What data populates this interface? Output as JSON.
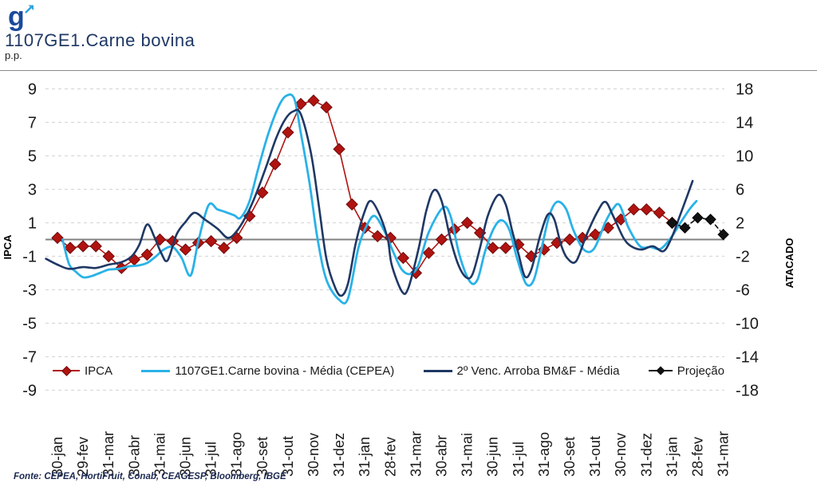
{
  "header": {
    "logo_text": "g",
    "title": "1107GE1.Carne bovina",
    "unit_label": "p.p."
  },
  "axes": {
    "left": {
      "title": "IPCA",
      "ticks": [
        9,
        7,
        5,
        3,
        1,
        -1,
        -3,
        -5,
        -7,
        -9
      ]
    },
    "right": {
      "title": "ATACADO",
      "ticks": [
        18,
        14,
        10,
        6,
        2,
        -2,
        -6,
        -10,
        -14,
        -18
      ]
    }
  },
  "legend": [
    {
      "label": "IPCA"
    },
    {
      "label": "1107GE1.Carne bovina - Média (CEPEA)"
    },
    {
      "label": "2º Venc. Arroba BM&F - Média"
    },
    {
      "label": "Projeção"
    }
  ],
  "footer": {
    "source": "Fonte: CEPEA, HortiFruit, Conab, CEAGESP, Bloomberg, IBGE"
  },
  "colors": {
    "title": "#1f3864",
    "ipca": "#b01310",
    "ipca_edge": "#6e0b0b",
    "cepea": "#29b2e8",
    "bmf": "#1f3864",
    "projecao": "#111111",
    "grid": "#d9d9d9",
    "zero_line": "#808080",
    "tick_text": "#1a1a1a"
  },
  "chart_data": {
    "type": "line",
    "title": "1107GE1.Carne bovina",
    "xlabel": "",
    "ylabel_left": "IPCA (p.p.)",
    "ylabel_right": "ATACADO (p.p.)",
    "ylim_left": [
      -9,
      9
    ],
    "ylim_right": [
      -18,
      18
    ],
    "grid": "dashed horizontal at every labeled tick, solid line at zero",
    "legend_position": "bottom inside plot",
    "x_note": "x = half-month index 0..52; even indices fall on the month-end category labels below (jan-2020 .. mar-2022)",
    "categories": [
      "30-jan",
      "29-fev",
      "31-mar",
      "30-abr",
      "31-mai",
      "30-jun",
      "31-jul",
      "31-ago",
      "30-set",
      "31-out",
      "30-nov",
      "31-dez",
      "31-jan",
      "28-fev",
      "31-mar",
      "30-abr",
      "31-mai",
      "30-jun",
      "31-jul",
      "31-ago",
      "30-set",
      "31-out",
      "30-nov",
      "31-dez",
      "31-jan",
      "28-fev",
      "31-mar"
    ],
    "series": [
      {
        "name": "IPCA",
        "axis": "left",
        "color": "#b01310",
        "edge": "#6e0b0b",
        "marker": "diamond",
        "marker_size": 7,
        "line_width": 1.6,
        "dash": "solid",
        "smooth": false,
        "points": [
          [
            0,
            0.1
          ],
          [
            1,
            -0.5
          ],
          [
            2,
            -0.4
          ],
          [
            3,
            -0.4
          ],
          [
            4,
            -1.0
          ],
          [
            5,
            -1.7
          ],
          [
            6,
            -1.2
          ],
          [
            7,
            -0.9
          ],
          [
            8,
            0.0
          ],
          [
            9,
            -0.1
          ],
          [
            10,
            -0.6
          ],
          [
            11,
            -0.2
          ],
          [
            12,
            -0.1
          ],
          [
            13,
            -0.5
          ],
          [
            14,
            0.1
          ],
          [
            15,
            1.4
          ],
          [
            16,
            2.8
          ],
          [
            17,
            4.5
          ],
          [
            18,
            6.4
          ],
          [
            19,
            8.1
          ],
          [
            20,
            8.3
          ],
          [
            21,
            7.9
          ],
          [
            22,
            5.4
          ],
          [
            23,
            2.1
          ],
          [
            24,
            0.7
          ],
          [
            25,
            0.2
          ],
          [
            26,
            0.1
          ],
          [
            27,
            -1.1
          ],
          [
            28,
            -2.0
          ],
          [
            29,
            -0.8
          ],
          [
            30,
            0.0
          ],
          [
            31,
            0.6
          ],
          [
            32,
            1.0
          ],
          [
            33,
            0.4
          ],
          [
            34,
            -0.5
          ],
          [
            35,
            -0.5
          ],
          [
            36,
            -0.3
          ],
          [
            37,
            -1.0
          ],
          [
            38,
            -0.6
          ],
          [
            39,
            -0.2
          ],
          [
            40,
            0.0
          ],
          [
            41,
            0.1
          ],
          [
            42,
            0.3
          ],
          [
            43,
            0.7
          ],
          [
            44,
            1.2
          ],
          [
            45,
            1.8
          ],
          [
            46,
            1.8
          ],
          [
            47,
            1.6
          ],
          [
            48,
            1.0
          ]
        ]
      },
      {
        "name": "1107GE1.Carne bovina - Média (CEPEA)",
        "axis": "right",
        "color": "#29b2e8",
        "marker": "none",
        "line_width": 2.8,
        "dash": "solid",
        "smooth": true,
        "points": [
          [
            0.4,
            0.0
          ],
          [
            0.9,
            -2.9
          ],
          [
            1.4,
            -3.8
          ],
          [
            2.0,
            -4.5
          ],
          [
            2.6,
            -4.4
          ],
          [
            3.3,
            -4.0
          ],
          [
            4.0,
            -3.6
          ],
          [
            4.8,
            -3.5
          ],
          [
            5.6,
            -3.2
          ],
          [
            6.3,
            -3.1
          ],
          [
            7.0,
            -2.8
          ],
          [
            7.7,
            -2.0
          ],
          [
            8.3,
            -1.2
          ],
          [
            9.0,
            -0.9
          ],
          [
            9.7,
            -2.2
          ],
          [
            10.4,
            -4.3
          ],
          [
            11.0,
            -0.2
          ],
          [
            11.8,
            4.1
          ],
          [
            12.5,
            3.6
          ],
          [
            13.1,
            3.3
          ],
          [
            13.8,
            2.9
          ],
          [
            14.3,
            2.6
          ],
          [
            15.0,
            4.6
          ],
          [
            15.7,
            8.6
          ],
          [
            16.5,
            12.8
          ],
          [
            17.3,
            16.0
          ],
          [
            17.9,
            17.2
          ],
          [
            18.5,
            16.8
          ],
          [
            19.0,
            12.8
          ],
          [
            19.7,
            6.6
          ],
          [
            20.3,
            0.2
          ],
          [
            21.0,
            -4.8
          ],
          [
            22.0,
            -7.2
          ],
          [
            22.7,
            -7.0
          ],
          [
            23.5,
            -1.0
          ],
          [
            24.2,
            1.8
          ],
          [
            24.8,
            2.8
          ],
          [
            25.6,
            0.8
          ],
          [
            26.2,
            -1.4
          ],
          [
            26.9,
            -3.6
          ],
          [
            27.6,
            -4.1
          ],
          [
            28.2,
            -3.0
          ],
          [
            29.0,
            0.9
          ],
          [
            30.1,
            3.8
          ],
          [
            30.7,
            2.8
          ],
          [
            31.4,
            -1.9
          ],
          [
            32.2,
            -5.0
          ],
          [
            32.8,
            -4.8
          ],
          [
            33.4,
            -1.4
          ],
          [
            34.1,
            1.4
          ],
          [
            34.7,
            2.3
          ],
          [
            35.3,
            1.1
          ],
          [
            35.9,
            -2.3
          ],
          [
            36.6,
            -5.3
          ],
          [
            37.2,
            -4.8
          ],
          [
            37.8,
            -1.1
          ],
          [
            38.4,
            2.8
          ],
          [
            39.0,
            4.5
          ],
          [
            39.7,
            3.7
          ],
          [
            40.3,
            1.1
          ],
          [
            41.1,
            -1.2
          ],
          [
            41.9,
            -1.1
          ],
          [
            42.8,
            2.1
          ],
          [
            43.4,
            3.7
          ],
          [
            43.9,
            4.1
          ],
          [
            44.6,
            1.4
          ],
          [
            45.5,
            -0.8
          ],
          [
            46.3,
            -0.9
          ],
          [
            47.1,
            -1.1
          ],
          [
            47.9,
            0.2
          ],
          [
            48.7,
            2.1
          ],
          [
            49.4,
            3.7
          ],
          [
            49.9,
            4.6
          ]
        ]
      },
      {
        "name": "2º Venc. Arroba BM&F - Média",
        "axis": "right",
        "color": "#1f3864",
        "marker": "none",
        "line_width": 2.6,
        "dash": "solid",
        "smooth": true,
        "points": [
          [
            -0.9,
            -2.3
          ],
          [
            0.0,
            -3.0
          ],
          [
            0.9,
            -3.5
          ],
          [
            2.0,
            -3.3
          ],
          [
            3.0,
            -3.4
          ],
          [
            4.0,
            -3.0
          ],
          [
            5.0,
            -2.7
          ],
          [
            5.8,
            -2.0
          ],
          [
            6.4,
            -0.6
          ],
          [
            7.0,
            1.8
          ],
          [
            7.6,
            0.2
          ],
          [
            8.1,
            -1.6
          ],
          [
            8.6,
            -2.5
          ],
          [
            9.3,
            0.6
          ],
          [
            10.0,
            2.1
          ],
          [
            10.7,
            3.2
          ],
          [
            11.5,
            2.4
          ],
          [
            12.5,
            1.3
          ],
          [
            13.3,
            0.2
          ],
          [
            14.0,
            1.0
          ],
          [
            14.8,
            3.0
          ],
          [
            15.5,
            5.4
          ],
          [
            16.3,
            8.7
          ],
          [
            17.1,
            12.2
          ],
          [
            17.8,
            14.4
          ],
          [
            18.4,
            15.3
          ],
          [
            19.0,
            15.0
          ],
          [
            19.8,
            10.3
          ],
          [
            20.4,
            4.2
          ],
          [
            21.0,
            -2.3
          ],
          [
            21.7,
            -5.8
          ],
          [
            22.2,
            -6.7
          ],
          [
            22.7,
            -5.2
          ],
          [
            23.3,
            -0.4
          ],
          [
            24.0,
            3.4
          ],
          [
            24.5,
            4.6
          ],
          [
            25.2,
            2.8
          ],
          [
            25.8,
            0.0
          ],
          [
            26.1,
            -3.0
          ],
          [
            26.9,
            -6.2
          ],
          [
            27.4,
            -5.8
          ],
          [
            28.2,
            -1.1
          ],
          [
            28.8,
            3.4
          ],
          [
            29.4,
            5.9
          ],
          [
            30.0,
            4.6
          ],
          [
            30.7,
            0.0
          ],
          [
            31.3,
            -3.0
          ],
          [
            31.9,
            -4.5
          ],
          [
            32.4,
            -4.2
          ],
          [
            33.0,
            -1.0
          ],
          [
            33.6,
            2.8
          ],
          [
            34.4,
            5.3
          ],
          [
            35.0,
            4.2
          ],
          [
            35.5,
            1.1
          ],
          [
            36.0,
            -1.7
          ],
          [
            36.5,
            -4.4
          ],
          [
            37.0,
            -3.6
          ],
          [
            37.7,
            0.5
          ],
          [
            38.3,
            3.0
          ],
          [
            38.8,
            2.4
          ],
          [
            39.3,
            -0.5
          ],
          [
            39.8,
            -2.2
          ],
          [
            40.5,
            -2.6
          ],
          [
            41.3,
            0.5
          ],
          [
            42.2,
            3.4
          ],
          [
            42.8,
            4.5
          ],
          [
            43.4,
            2.8
          ],
          [
            44.2,
            0.2
          ],
          [
            44.8,
            -0.8
          ],
          [
            45.6,
            -1.2
          ],
          [
            46.5,
            -0.8
          ],
          [
            47.3,
            -1.4
          ],
          [
            47.9,
            0.0
          ],
          [
            48.6,
            2.8
          ],
          [
            49.2,
            5.3
          ],
          [
            49.6,
            7.0
          ]
        ]
      },
      {
        "name": "Projeção",
        "axis": "left",
        "color": "#111111",
        "edge": "#000000",
        "marker": "diamond",
        "marker_size": 6.5,
        "line_width": 1.6,
        "dash": "dashed",
        "smooth": false,
        "points": [
          [
            48,
            1.0
          ],
          [
            49,
            0.7
          ],
          [
            50,
            1.3
          ],
          [
            51,
            1.2
          ],
          [
            52,
            0.3
          ]
        ]
      }
    ]
  }
}
